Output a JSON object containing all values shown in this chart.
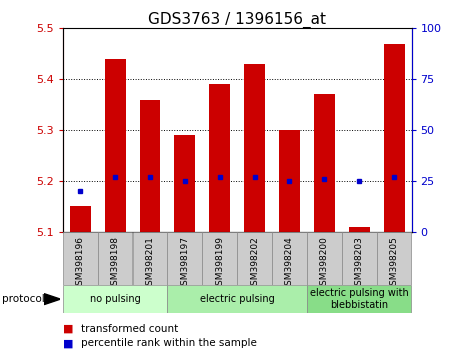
{
  "title": "GDS3763 / 1396156_at",
  "samples": [
    "GSM398196",
    "GSM398198",
    "GSM398201",
    "GSM398197",
    "GSM398199",
    "GSM398202",
    "GSM398204",
    "GSM398200",
    "GSM398203",
    "GSM398205"
  ],
  "transformed_counts": [
    5.15,
    5.44,
    5.36,
    5.29,
    5.39,
    5.43,
    5.3,
    5.37,
    5.11,
    5.47
  ],
  "percentile_ranks": [
    20,
    27,
    27,
    25,
    27,
    27,
    25,
    26,
    25,
    27
  ],
  "ylim_left": [
    5.1,
    5.5
  ],
  "ylim_right": [
    0,
    100
  ],
  "yticks_left": [
    5.1,
    5.2,
    5.3,
    5.4,
    5.5
  ],
  "yticks_right": [
    0,
    25,
    50,
    75,
    100
  ],
  "bar_color": "#cc0000",
  "dot_color": "#0000cc",
  "bar_width": 0.6,
  "groups": [
    {
      "label": "no pulsing",
      "indices": [
        0,
        1,
        2
      ],
      "color": "#ccffcc"
    },
    {
      "label": "electric pulsing",
      "indices": [
        3,
        4,
        5,
        6
      ],
      "color": "#aaeeaa"
    },
    {
      "label": "electric pulsing with\nblebbistatin",
      "indices": [
        7,
        8,
        9
      ],
      "color": "#88dd88"
    }
  ],
  "protocol_label": "protocol",
  "legend_bar_label": "transformed count",
  "legend_dot_label": "percentile rank within the sample",
  "bg_color": "#ffffff",
  "plot_bg": "#ffffff",
  "tick_label_bg": "#cccccc",
  "grid_color": "#000000",
  "title_fontsize": 11,
  "tick_fontsize": 8,
  "sample_fontsize": 6.5
}
